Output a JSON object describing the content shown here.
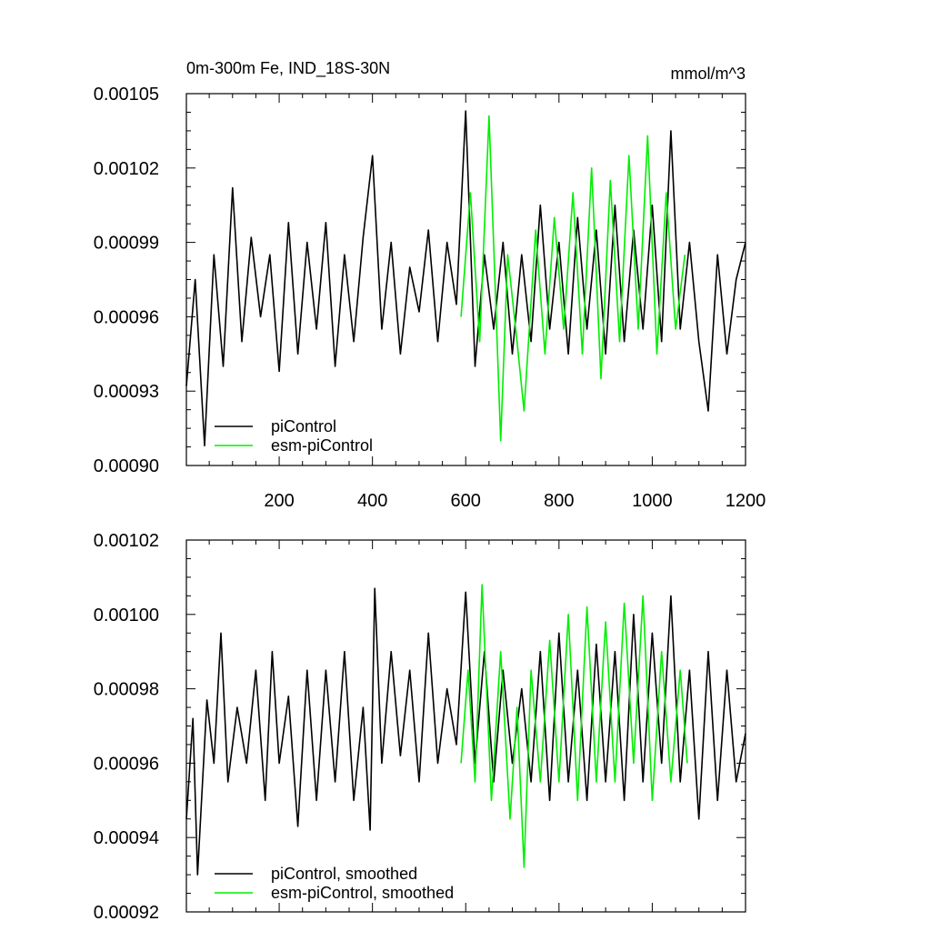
{
  "chart_data": [
    {
      "type": "line",
      "title": "0m-300m Fe, IND_18S-30N",
      "units": "mmol/m^3",
      "xlim": [
        1,
        1200
      ],
      "ylim": [
        0.0009,
        0.00105
      ],
      "xticks": [
        200,
        400,
        600,
        800,
        1000,
        1200
      ],
      "xtick_labels": [
        "200",
        "400",
        "600",
        "800",
        "1000",
        "1200"
      ],
      "yticks": [
        0.0009,
        0.00093,
        0.00096,
        0.00099,
        0.00102,
        0.00105
      ],
      "ytick_labels": [
        "0.00090",
        "0.00093",
        "0.00096",
        "0.00099",
        "0.00102",
        "0.00105"
      ],
      "grid": false,
      "legend_position": "bottom-left",
      "series": [
        {
          "name": "piControl",
          "color": "#000000",
          "x": [
            1,
            20,
            40,
            60,
            80,
            100,
            120,
            140,
            160,
            180,
            200,
            220,
            240,
            260,
            280,
            300,
            320,
            340,
            360,
            380,
            400,
            420,
            440,
            460,
            480,
            500,
            520,
            540,
            560,
            580,
            600,
            620,
            640,
            660,
            680,
            700,
            720,
            740,
            760,
            780,
            800,
            820,
            840,
            860,
            880,
            900,
            920,
            940,
            960,
            980,
            1000,
            1020,
            1040,
            1060,
            1080,
            1100,
            1120,
            1140,
            1160,
            1180,
            1200
          ],
          "y": [
            0.000932,
            0.000975,
            0.000908,
            0.000985,
            0.00094,
            0.001012,
            0.00095,
            0.000992,
            0.00096,
            0.000985,
            0.000938,
            0.000998,
            0.000945,
            0.00099,
            0.000955,
            0.000998,
            0.00094,
            0.000985,
            0.00095,
            0.000992,
            0.001025,
            0.000955,
            0.00099,
            0.000945,
            0.00098,
            0.000962,
            0.000995,
            0.00095,
            0.00099,
            0.000965,
            0.001043,
            0.00094,
            0.000985,
            0.000955,
            0.00099,
            0.000945,
            0.000985,
            0.00095,
            0.001005,
            0.000955,
            0.00099,
            0.000945,
            0.001,
            0.000955,
            0.000995,
            0.000945,
            0.001005,
            0.00095,
            0.000995,
            0.000955,
            0.001005,
            0.00095,
            0.001035,
            0.000955,
            0.00099,
            0.00095,
            0.000922,
            0.000985,
            0.000945,
            0.000975,
            0.00099
          ]
        },
        {
          "name": "esm-piControl",
          "color": "#00ee00",
          "x": [
            590,
            610,
            630,
            650,
            675,
            690,
            710,
            725,
            750,
            770,
            790,
            810,
            830,
            850,
            870,
            890,
            910,
            930,
            950,
            970,
            990,
            1010,
            1030,
            1050,
            1070
          ],
          "y": [
            0.00096,
            0.00101,
            0.00095,
            0.001041,
            0.00091,
            0.000985,
            0.00095,
            0.000922,
            0.000995,
            0.000945,
            0.001,
            0.000955,
            0.00101,
            0.000945,
            0.00102,
            0.000935,
            0.001015,
            0.00095,
            0.001025,
            0.000955,
            0.001033,
            0.000945,
            0.00101,
            0.000955,
            0.000985
          ]
        }
      ]
    },
    {
      "type": "line",
      "xlim": [
        1,
        1200
      ],
      "ylim": [
        0.00092,
        0.00102
      ],
      "xticks": [
        200,
        400,
        600,
        800,
        1000,
        1200
      ],
      "yticks": [
        0.00092,
        0.00094,
        0.00096,
        0.00098,
        0.001,
        0.00102
      ],
      "ytick_labels": [
        "0.00092",
        "0.00094",
        "0.00096",
        "0.00098",
        "0.00100",
        "0.00102"
      ],
      "grid": false,
      "legend_position": "bottom-left",
      "series": [
        {
          "name": "piControl, smoothed",
          "color": "#000000",
          "x": [
            1,
            15,
            25,
            45,
            60,
            75,
            90,
            110,
            130,
            150,
            170,
            185,
            200,
            220,
            240,
            260,
            280,
            300,
            320,
            340,
            360,
            380,
            395,
            405,
            420,
            440,
            460,
            480,
            500,
            520,
            540,
            560,
            580,
            600,
            620,
            640,
            660,
            680,
            700,
            720,
            740,
            760,
            780,
            800,
            820,
            840,
            860,
            880,
            900,
            920,
            940,
            960,
            980,
            1000,
            1020,
            1040,
            1060,
            1080,
            1100,
            1120,
            1140,
            1160,
            1180,
            1200
          ],
          "y": [
            0.000945,
            0.000972,
            0.00093,
            0.000977,
            0.00096,
            0.000995,
            0.000955,
            0.000975,
            0.00096,
            0.000985,
            0.00095,
            0.00099,
            0.00096,
            0.000978,
            0.000943,
            0.000985,
            0.00095,
            0.000985,
            0.000955,
            0.00099,
            0.00095,
            0.000975,
            0.000942,
            0.001007,
            0.00096,
            0.00099,
            0.000962,
            0.000985,
            0.000955,
            0.000995,
            0.00096,
            0.00098,
            0.000965,
            0.001006,
            0.00096,
            0.00099,
            0.000955,
            0.000985,
            0.00096,
            0.00098,
            0.000955,
            0.00099,
            0.00095,
            0.000995,
            0.000955,
            0.000985,
            0.00095,
            0.000992,
            0.000955,
            0.00099,
            0.00095,
            0.001,
            0.000955,
            0.000995,
            0.00096,
            0.001005,
            0.000955,
            0.000985,
            0.000945,
            0.00099,
            0.00095,
            0.000985,
            0.000955,
            0.000968
          ]
        },
        {
          "name": "esm-piControl, smoothed",
          "color": "#00ee00",
          "x": [
            590,
            605,
            620,
            635,
            655,
            675,
            695,
            710,
            725,
            740,
            760,
            780,
            800,
            820,
            840,
            860,
            880,
            900,
            920,
            940,
            960,
            980,
            1000,
            1020,
            1040,
            1060,
            1075
          ],
          "y": [
            0.00096,
            0.000985,
            0.000955,
            0.001008,
            0.00095,
            0.00099,
            0.000945,
            0.000975,
            0.000932,
            0.000985,
            0.000955,
            0.000993,
            0.000955,
            0.001,
            0.00095,
            0.001002,
            0.000955,
            0.000998,
            0.000955,
            0.001003,
            0.00096,
            0.001005,
            0.00095,
            0.00099,
            0.000955,
            0.000985,
            0.00096
          ]
        }
      ]
    }
  ]
}
